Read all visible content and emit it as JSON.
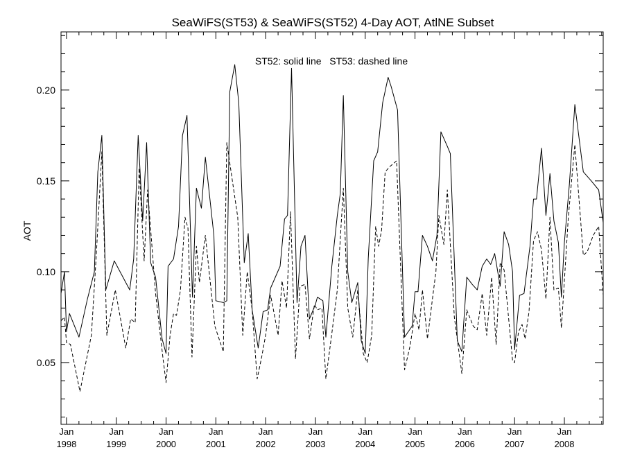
{
  "chart_data": {
    "type": "line",
    "title": "SeaWiFS(ST53) & SeaWiFS(ST52) 4-Day AOT, AtlNE Subset",
    "ylabel": "AOT",
    "xlabel": "",
    "annotation": "ST52: solid line   ST53: dashed line",
    "xlim": [
      1997.89,
      2008.78
    ],
    "ylim": [
      0.016,
      0.232
    ],
    "y_ticks": [
      {
        "value": 0.05,
        "label": "0.05"
      },
      {
        "value": 0.1,
        "label": "0.10"
      },
      {
        "value": 0.15,
        "label": "0.15"
      },
      {
        "value": 0.2,
        "label": "0.20"
      }
    ],
    "x_ticks": [
      {
        "value": 1998.0,
        "month": "Jan",
        "year": "1998"
      },
      {
        "value": 1999.0,
        "month": "Jan",
        "year": "1999"
      },
      {
        "value": 2000.0,
        "month": "Jan",
        "year": "2000"
      },
      {
        "value": 2001.0,
        "month": "Jan",
        "year": "2001"
      },
      {
        "value": 2002.0,
        "month": "Jan",
        "year": "2002"
      },
      {
        "value": 2003.0,
        "month": "Jan",
        "year": "2003"
      },
      {
        "value": 2004.0,
        "month": "Jan",
        "year": "2004"
      },
      {
        "value": 2005.0,
        "month": "Jan",
        "year": "2005"
      },
      {
        "value": 2006.0,
        "month": "Jan",
        "year": "2006"
      },
      {
        "value": 2007.0,
        "month": "Jan",
        "year": "2007"
      },
      {
        "value": 2008.0,
        "month": "Jan",
        "year": "2008"
      }
    ],
    "series": [
      {
        "name": "ST52",
        "style": "solid",
        "points": [
          [
            1997.89,
            0.088
          ],
          [
            1997.96,
            0.1
          ],
          [
            1998.0,
            0.067
          ],
          [
            1998.06,
            0.077
          ],
          [
            1998.25,
            0.064
          ],
          [
            1998.42,
            0.085
          ],
          [
            1998.56,
            0.1
          ],
          [
            1998.63,
            0.155
          ],
          [
            1998.71,
            0.175
          ],
          [
            1998.79,
            0.09
          ],
          [
            1998.96,
            0.106
          ],
          [
            1999.27,
            0.09
          ],
          [
            1999.35,
            0.107
          ],
          [
            1999.44,
            0.175
          ],
          [
            1999.53,
            0.128
          ],
          [
            1999.61,
            0.171
          ],
          [
            1999.69,
            0.105
          ],
          [
            1999.79,
            0.097
          ],
          [
            1999.92,
            0.063
          ],
          [
            2000.0,
            0.055
          ],
          [
            2000.04,
            0.103
          ],
          [
            2000.15,
            0.107
          ],
          [
            2000.25,
            0.125
          ],
          [
            2000.33,
            0.175
          ],
          [
            2000.42,
            0.186
          ],
          [
            2000.53,
            0.086
          ],
          [
            2000.61,
            0.146
          ],
          [
            2000.71,
            0.135
          ],
          [
            2000.79,
            0.163
          ],
          [
            2000.96,
            0.12
          ],
          [
            2001.0,
            0.084
          ],
          [
            2001.15,
            0.083
          ],
          [
            2001.22,
            0.084
          ],
          [
            2001.28,
            0.199
          ],
          [
            2001.38,
            0.214
          ],
          [
            2001.46,
            0.193
          ],
          [
            2001.57,
            0.105
          ],
          [
            2001.65,
            0.121
          ],
          [
            2001.73,
            0.079
          ],
          [
            2001.85,
            0.058
          ],
          [
            2001.95,
            0.078
          ],
          [
            2002.04,
            0.079
          ],
          [
            2002.1,
            0.091
          ],
          [
            2002.29,
            0.103
          ],
          [
            2002.38,
            0.129
          ],
          [
            2002.44,
            0.131
          ],
          [
            2002.52,
            0.212
          ],
          [
            2002.63,
            0.083
          ],
          [
            2002.71,
            0.114
          ],
          [
            2002.79,
            0.12
          ],
          [
            2002.88,
            0.074
          ],
          [
            2003.0,
            0.082
          ],
          [
            2003.04,
            0.086
          ],
          [
            2003.15,
            0.084
          ],
          [
            2003.21,
            0.064
          ],
          [
            2003.33,
            0.103
          ],
          [
            2003.44,
            0.131
          ],
          [
            2003.5,
            0.143
          ],
          [
            2003.56,
            0.197
          ],
          [
            2003.65,
            0.1
          ],
          [
            2003.73,
            0.083
          ],
          [
            2003.85,
            0.094
          ],
          [
            2003.92,
            0.062
          ],
          [
            2004.0,
            0.055
          ],
          [
            2004.06,
            0.107
          ],
          [
            2004.17,
            0.161
          ],
          [
            2004.25,
            0.166
          ],
          [
            2004.35,
            0.193
          ],
          [
            2004.46,
            0.207
          ],
          [
            2004.52,
            0.202
          ],
          [
            2004.65,
            0.189
          ],
          [
            2004.79,
            0.064
          ],
          [
            2004.94,
            0.07
          ],
          [
            2005.0,
            0.089
          ],
          [
            2005.06,
            0.089
          ],
          [
            2005.15,
            0.12
          ],
          [
            2005.25,
            0.114
          ],
          [
            2005.35,
            0.106
          ],
          [
            2005.44,
            0.12
          ],
          [
            2005.52,
            0.177
          ],
          [
            2005.65,
            0.169
          ],
          [
            2005.71,
            0.165
          ],
          [
            2005.85,
            0.062
          ],
          [
            2005.94,
            0.056
          ],
          [
            2006.04,
            0.097
          ],
          [
            2006.15,
            0.093
          ],
          [
            2006.25,
            0.09
          ],
          [
            2006.35,
            0.103
          ],
          [
            2006.44,
            0.107
          ],
          [
            2006.52,
            0.104
          ],
          [
            2006.6,
            0.11
          ],
          [
            2006.71,
            0.092
          ],
          [
            2006.79,
            0.122
          ],
          [
            2006.88,
            0.115
          ],
          [
            2006.96,
            0.1
          ],
          [
            2007.0,
            0.057
          ],
          [
            2007.1,
            0.087
          ],
          [
            2007.19,
            0.088
          ],
          [
            2007.31,
            0.114
          ],
          [
            2007.38,
            0.14
          ],
          [
            2007.44,
            0.14
          ],
          [
            2007.54,
            0.168
          ],
          [
            2007.63,
            0.131
          ],
          [
            2007.71,
            0.154
          ],
          [
            2007.79,
            0.128
          ],
          [
            2007.88,
            0.116
          ],
          [
            2007.94,
            0.086
          ],
          [
            2008.0,
            0.116
          ],
          [
            2008.1,
            0.148
          ],
          [
            2008.21,
            0.192
          ],
          [
            2008.38,
            0.155
          ],
          [
            2008.54,
            0.15
          ],
          [
            2008.69,
            0.145
          ],
          [
            2008.78,
            0.127
          ]
        ]
      },
      {
        "name": "ST53",
        "style": "dashed",
        "points": [
          [
            1997.89,
            0.073
          ],
          [
            1997.96,
            0.075
          ],
          [
            1998.0,
            0.061
          ],
          [
            1998.08,
            0.06
          ],
          [
            1998.27,
            0.034
          ],
          [
            1998.5,
            0.065
          ],
          [
            1998.6,
            0.11
          ],
          [
            1998.71,
            0.166
          ],
          [
            1998.81,
            0.065
          ],
          [
            1998.98,
            0.09
          ],
          [
            1999.19,
            0.058
          ],
          [
            1999.29,
            0.074
          ],
          [
            1999.38,
            0.072
          ],
          [
            1999.46,
            0.157
          ],
          [
            1999.56,
            0.106
          ],
          [
            1999.63,
            0.145
          ],
          [
            1999.79,
            0.088
          ],
          [
            1999.94,
            0.052
          ],
          [
            2000.0,
            0.039
          ],
          [
            2000.08,
            0.065
          ],
          [
            2000.15,
            0.077
          ],
          [
            2000.21,
            0.076
          ],
          [
            2000.29,
            0.09
          ],
          [
            2000.38,
            0.13
          ],
          [
            2000.44,
            0.124
          ],
          [
            2000.52,
            0.053
          ],
          [
            2000.61,
            0.114
          ],
          [
            2000.67,
            0.094
          ],
          [
            2000.79,
            0.12
          ],
          [
            2000.98,
            0.07
          ],
          [
            2001.15,
            0.056
          ],
          [
            2001.22,
            0.171
          ],
          [
            2001.44,
            0.13
          ],
          [
            2001.54,
            0.065
          ],
          [
            2001.63,
            0.1
          ],
          [
            2001.73,
            0.079
          ],
          [
            2001.83,
            0.041
          ],
          [
            2001.92,
            0.053
          ],
          [
            2002.0,
            0.065
          ],
          [
            2002.1,
            0.087
          ],
          [
            2002.15,
            0.08
          ],
          [
            2002.25,
            0.065
          ],
          [
            2002.33,
            0.095
          ],
          [
            2002.42,
            0.08
          ],
          [
            2002.5,
            0.133
          ],
          [
            2002.6,
            0.052
          ],
          [
            2002.69,
            0.092
          ],
          [
            2002.79,
            0.093
          ],
          [
            2002.88,
            0.063
          ],
          [
            2002.98,
            0.082
          ],
          [
            2003.04,
            0.079
          ],
          [
            2003.13,
            0.08
          ],
          [
            2003.21,
            0.041
          ],
          [
            2003.33,
            0.066
          ],
          [
            2003.44,
            0.09
          ],
          [
            2003.5,
            0.118
          ],
          [
            2003.56,
            0.146
          ],
          [
            2003.65,
            0.08
          ],
          [
            2003.75,
            0.064
          ],
          [
            2003.85,
            0.09
          ],
          [
            2003.96,
            0.055
          ],
          [
            2004.04,
            0.05
          ],
          [
            2004.13,
            0.065
          ],
          [
            2004.21,
            0.125
          ],
          [
            2004.27,
            0.114
          ],
          [
            2004.33,
            0.123
          ],
          [
            2004.4,
            0.155
          ],
          [
            2004.5,
            0.158
          ],
          [
            2004.63,
            0.161
          ],
          [
            2004.79,
            0.046
          ],
          [
            2004.9,
            0.059
          ],
          [
            2005.0,
            0.077
          ],
          [
            2005.08,
            0.068
          ],
          [
            2005.15,
            0.09
          ],
          [
            2005.25,
            0.063
          ],
          [
            2005.35,
            0.085
          ],
          [
            2005.42,
            0.1
          ],
          [
            2005.48,
            0.131
          ],
          [
            2005.58,
            0.115
          ],
          [
            2005.65,
            0.145
          ],
          [
            2005.79,
            0.075
          ],
          [
            2005.94,
            0.044
          ],
          [
            2006.04,
            0.079
          ],
          [
            2006.17,
            0.07
          ],
          [
            2006.25,
            0.068
          ],
          [
            2006.35,
            0.088
          ],
          [
            2006.44,
            0.065
          ],
          [
            2006.54,
            0.097
          ],
          [
            2006.63,
            0.06
          ],
          [
            2006.71,
            0.105
          ],
          [
            2006.79,
            0.101
          ],
          [
            2006.96,
            0.051
          ],
          [
            2007.0,
            0.05
          ],
          [
            2007.08,
            0.067
          ],
          [
            2007.15,
            0.071
          ],
          [
            2007.21,
            0.063
          ],
          [
            2007.29,
            0.078
          ],
          [
            2007.38,
            0.117
          ],
          [
            2007.46,
            0.122
          ],
          [
            2007.54,
            0.112
          ],
          [
            2007.63,
            0.085
          ],
          [
            2007.71,
            0.13
          ],
          [
            2007.79,
            0.09
          ],
          [
            2007.88,
            0.091
          ],
          [
            2007.94,
            0.069
          ],
          [
            2008.0,
            0.095
          ],
          [
            2008.08,
            0.13
          ],
          [
            2008.21,
            0.17
          ],
          [
            2008.38,
            0.109
          ],
          [
            2008.46,
            0.111
          ],
          [
            2008.58,
            0.12
          ],
          [
            2008.69,
            0.125
          ],
          [
            2008.78,
            0.087
          ]
        ]
      }
    ]
  }
}
